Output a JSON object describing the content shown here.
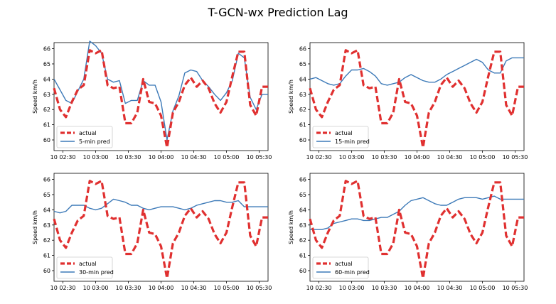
{
  "title": "T-GCN-wx Prediction Lag",
  "chart_data": [
    {
      "type": "line",
      "xlabel": "",
      "ylabel": "Speed km/h",
      "xticks": [
        "10 02:30",
        "10 03:00",
        "10 03:30",
        "10 04:00",
        "10 04:30",
        "10 05:00",
        "10 05:30"
      ],
      "yticks": [
        60,
        61,
        62,
        63,
        64,
        65,
        66
      ],
      "xlim": [
        0,
        36
      ],
      "ylim": [
        59.3,
        66.4
      ],
      "legend_position": "lower-left",
      "x": [
        0,
        1,
        2,
        3,
        4,
        5,
        6,
        7,
        8,
        9,
        10,
        11,
        12,
        13,
        14,
        15,
        16,
        17,
        18,
        19,
        20,
        21,
        22,
        23,
        24,
        25,
        26,
        27,
        28,
        29,
        30,
        31,
        32,
        33,
        34,
        35,
        36
      ],
      "series": [
        {
          "name": "actual",
          "color": "#e03030",
          "dashed": true,
          "values": [
            63.4,
            62.0,
            61.5,
            62.5,
            63.3,
            63.6,
            65.9,
            65.7,
            65.9,
            63.6,
            63.4,
            63.5,
            61.1,
            61.1,
            61.8,
            64.0,
            62.5,
            62.4,
            61.6,
            59.5,
            61.8,
            62.5,
            63.6,
            64.1,
            63.5,
            63.9,
            63.4,
            62.4,
            61.8,
            62.5,
            64.2,
            65.8,
            65.8,
            62.3,
            61.6,
            63.5,
            63.5
          ]
        },
        {
          "name": "5-min pred",
          "color": "#3d7ab8",
          "dashed": false,
          "values": [
            64.0,
            63.3,
            62.6,
            62.4,
            63.2,
            64.0,
            66.5,
            66.2,
            65.7,
            64.0,
            63.8,
            63.9,
            62.4,
            62.6,
            62.6,
            63.9,
            63.6,
            63.6,
            62.5,
            60.0,
            61.9,
            62.9,
            64.4,
            64.6,
            64.5,
            63.9,
            63.5,
            63.0,
            62.6,
            63.1,
            63.9,
            65.7,
            65.4,
            62.8,
            62.0,
            63.0,
            63.0
          ]
        }
      ]
    },
    {
      "type": "line",
      "xlabel": "",
      "ylabel": "Speed km/h",
      "xticks": [
        "10 02:30",
        "10 03:00",
        "10 03:30",
        "10 04:00",
        "10 04:30",
        "10 05:00",
        "10 05:30"
      ],
      "yticks": [
        60,
        61,
        62,
        63,
        64,
        65,
        66
      ],
      "xlim": [
        0,
        36
      ],
      "ylim": [
        59.3,
        66.4
      ],
      "legend_position": "lower-left",
      "x": [
        0,
        1,
        2,
        3,
        4,
        5,
        6,
        7,
        8,
        9,
        10,
        11,
        12,
        13,
        14,
        15,
        16,
        17,
        18,
        19,
        20,
        21,
        22,
        23,
        24,
        25,
        26,
        27,
        28,
        29,
        30,
        31,
        32,
        33,
        34,
        35,
        36
      ],
      "series": [
        {
          "name": "actual",
          "color": "#e03030",
          "dashed": true,
          "values": [
            63.4,
            62.0,
            61.5,
            62.5,
            63.3,
            63.6,
            65.9,
            65.7,
            65.9,
            63.6,
            63.4,
            63.5,
            61.1,
            61.1,
            61.8,
            64.0,
            62.5,
            62.4,
            61.6,
            59.5,
            61.8,
            62.5,
            63.6,
            64.1,
            63.5,
            63.9,
            63.4,
            62.4,
            61.8,
            62.5,
            64.2,
            65.8,
            65.8,
            62.3,
            61.6,
            63.5,
            63.5
          ]
        },
        {
          "name": "15-min pred",
          "color": "#3d7ab8",
          "dashed": false,
          "values": [
            64.0,
            64.1,
            63.9,
            63.7,
            63.6,
            63.7,
            64.2,
            64.6,
            64.6,
            64.7,
            64.5,
            64.2,
            63.7,
            63.6,
            63.7,
            63.8,
            64.1,
            64.3,
            64.1,
            63.9,
            63.8,
            63.8,
            64.0,
            64.3,
            64.5,
            64.7,
            64.9,
            65.1,
            65.3,
            65.1,
            64.6,
            64.4,
            64.4,
            65.2,
            65.4,
            65.4,
            65.4
          ]
        }
      ]
    },
    {
      "type": "line",
      "xlabel": "",
      "ylabel": "Speed km/h",
      "xticks": [
        "10 02:30",
        "10 03:00",
        "10 03:30",
        "10 04:00",
        "10 04:30",
        "10 05:00",
        "10 05:30"
      ],
      "yticks": [
        60,
        61,
        62,
        63,
        64,
        65,
        66
      ],
      "xlim": [
        0,
        36
      ],
      "ylim": [
        59.3,
        66.4
      ],
      "legend_position": "lower-left",
      "x": [
        0,
        1,
        2,
        3,
        4,
        5,
        6,
        7,
        8,
        9,
        10,
        11,
        12,
        13,
        14,
        15,
        16,
        17,
        18,
        19,
        20,
        21,
        22,
        23,
        24,
        25,
        26,
        27,
        28,
        29,
        30,
        31,
        32,
        33,
        34,
        35,
        36
      ],
      "series": [
        {
          "name": "actual",
          "color": "#e03030",
          "dashed": true,
          "values": [
            63.4,
            62.0,
            61.5,
            62.5,
            63.3,
            63.6,
            65.9,
            65.7,
            65.9,
            63.6,
            63.4,
            63.5,
            61.1,
            61.1,
            61.8,
            64.0,
            62.5,
            62.4,
            61.6,
            59.5,
            61.8,
            62.5,
            63.6,
            64.1,
            63.5,
            63.9,
            63.4,
            62.4,
            61.8,
            62.5,
            64.2,
            65.8,
            65.8,
            62.3,
            61.6,
            63.5,
            63.5
          ]
        },
        {
          "name": "30-min pred",
          "color": "#3d7ab8",
          "dashed": false,
          "values": [
            63.9,
            63.8,
            63.9,
            64.3,
            64.3,
            64.3,
            64.1,
            64.0,
            64.1,
            64.4,
            64.7,
            64.6,
            64.5,
            64.3,
            64.3,
            64.1,
            64.0,
            64.1,
            64.2,
            64.2,
            64.2,
            64.1,
            64.0,
            64.1,
            64.3,
            64.4,
            64.5,
            64.6,
            64.6,
            64.5,
            64.5,
            64.6,
            64.2,
            64.2,
            64.2,
            64.2,
            64.2
          ]
        }
      ]
    },
    {
      "type": "line",
      "xlabel": "",
      "ylabel": "Speed km/h",
      "xticks": [
        "10 02:30",
        "10 03:00",
        "10 03:30",
        "10 04:00",
        "10 04:30",
        "10 05:00",
        "10 05:30"
      ],
      "yticks": [
        60,
        61,
        62,
        63,
        64,
        65,
        66
      ],
      "xlim": [
        0,
        36
      ],
      "ylim": [
        59.3,
        66.4
      ],
      "legend_position": "lower-left",
      "x": [
        0,
        1,
        2,
        3,
        4,
        5,
        6,
        7,
        8,
        9,
        10,
        11,
        12,
        13,
        14,
        15,
        16,
        17,
        18,
        19,
        20,
        21,
        22,
        23,
        24,
        25,
        26,
        27,
        28,
        29,
        30,
        31,
        32,
        33,
        34,
        35,
        36
      ],
      "series": [
        {
          "name": "actual",
          "color": "#e03030",
          "dashed": true,
          "values": [
            63.4,
            62.0,
            61.5,
            62.5,
            63.3,
            63.6,
            65.9,
            65.7,
            65.9,
            63.6,
            63.4,
            63.5,
            61.1,
            61.1,
            61.8,
            64.0,
            62.5,
            62.4,
            61.6,
            59.5,
            61.8,
            62.5,
            63.6,
            64.1,
            63.5,
            63.9,
            63.4,
            62.4,
            61.8,
            62.5,
            64.2,
            65.8,
            65.8,
            62.3,
            61.6,
            63.5,
            63.5
          ]
        },
        {
          "name": "60-min pred",
          "color": "#3d7ab8",
          "dashed": false,
          "values": [
            62.7,
            62.7,
            62.7,
            62.8,
            63.1,
            63.2,
            63.3,
            63.4,
            63.4,
            63.3,
            63.3,
            63.4,
            63.5,
            63.5,
            63.7,
            63.9,
            64.3,
            64.6,
            64.7,
            64.8,
            64.6,
            64.4,
            64.3,
            64.3,
            64.5,
            64.7,
            64.8,
            64.8,
            64.8,
            64.7,
            64.8,
            64.9,
            64.7,
            64.7,
            64.7,
            64.7,
            64.7
          ]
        }
      ]
    }
  ]
}
